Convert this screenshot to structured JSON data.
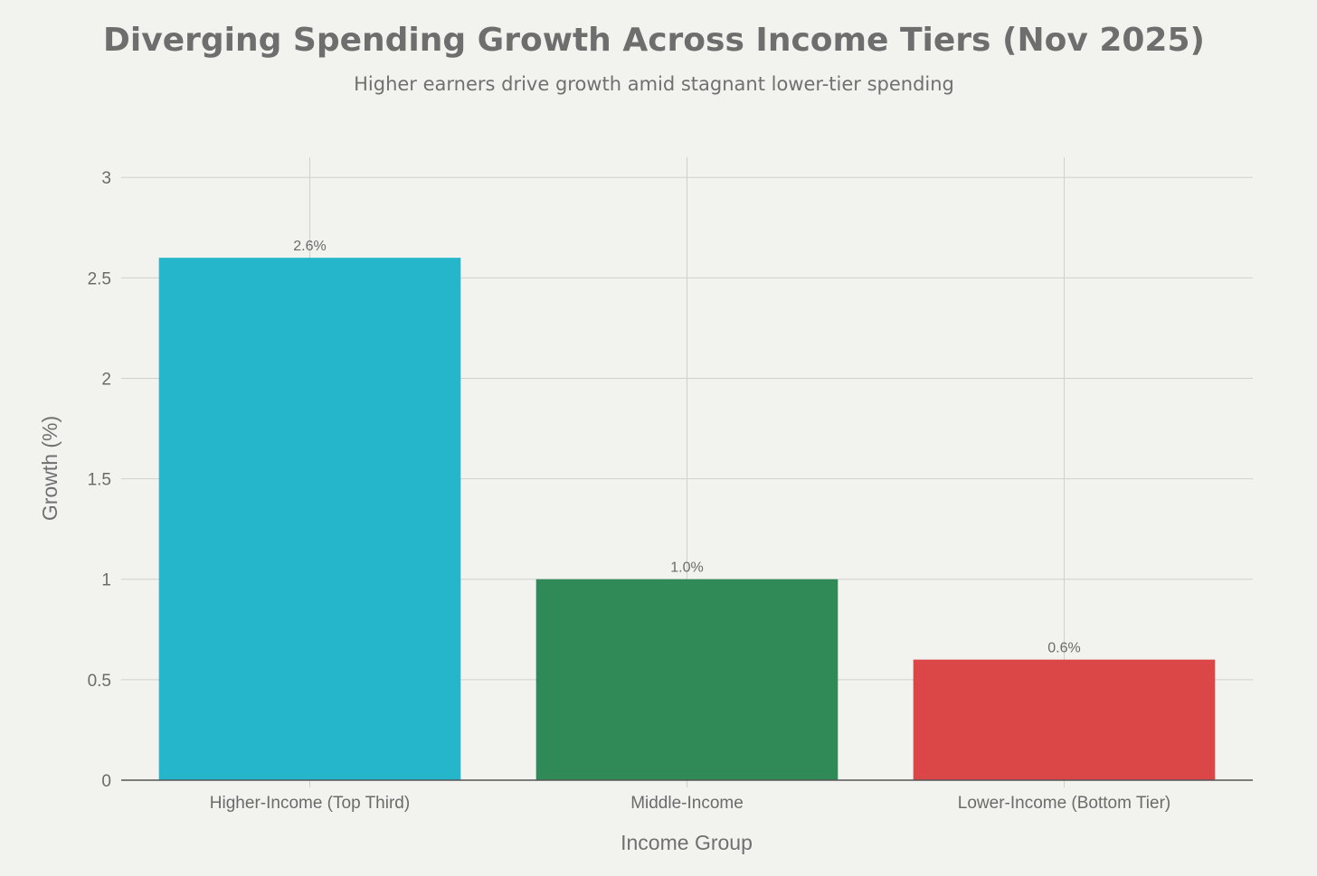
{
  "chart_data": {
    "type": "bar",
    "title": "Diverging Spending Growth Across Income Tiers (Nov 2025)",
    "subtitle": "Higher earners drive growth amid stagnant lower-tier spending",
    "xlabel": "Income Group",
    "ylabel": "Growth (%)",
    "categories": [
      "Higher-Income (Top Third)",
      "Middle-Income",
      "Lower-Income (Bottom Tier)"
    ],
    "values": [
      2.6,
      1.0,
      0.6
    ],
    "value_labels": [
      "2.6%",
      "1.0%",
      "0.6%"
    ],
    "colors": [
      "#25b6cc",
      "#2f8a57",
      "#db4647"
    ],
    "ylim": [
      0,
      3.1
    ],
    "yticks": [
      0,
      0.5,
      1,
      1.5,
      2,
      2.5,
      3
    ],
    "ytick_labels": [
      "0",
      "0.5",
      "1",
      "1.5",
      "2",
      "2.5",
      "3"
    ],
    "grid": true,
    "legend": "none"
  }
}
